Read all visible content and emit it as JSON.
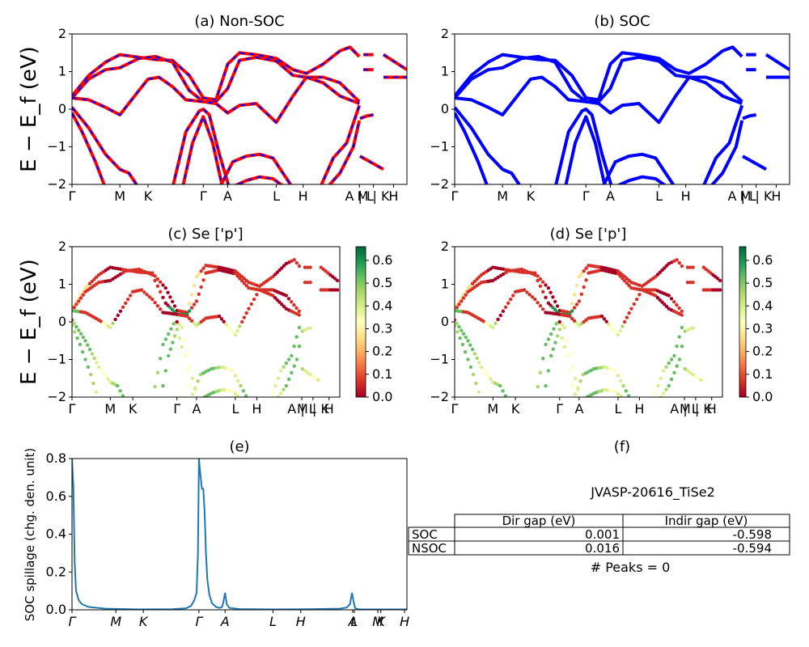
{
  "colors": {
    "nonsoc_line": "#ff0000",
    "nonsoc_dash": "#0000ff",
    "soc_line": "#0000ff",
    "spillage_line": "#1f77b4",
    "colormap": "RdYlGn"
  },
  "chart_data": [
    {
      "id": "a",
      "type": "line",
      "title": "(a) Non-SOC",
      "ylabel": "E − E_f (eV)",
      "ylim": [
        -2,
        2
      ],
      "yticks": [
        "−2",
        "−1",
        "0",
        "1",
        "2"
      ],
      "xticks": [
        "Γ",
        "M",
        "K",
        "Γ",
        "A",
        "L",
        "H",
        "A | L",
        "M | K",
        "H"
      ],
      "xtick_positions": [
        0,
        0.143,
        0.227,
        0.392,
        0.465,
        0.61,
        0.69,
        0.858,
        0.9,
        0.96
      ],
      "note": "band structure, red solid with blue dashed overlay"
    },
    {
      "id": "b",
      "type": "line",
      "title": "(b) SOC",
      "ylim": [
        -2,
        2
      ],
      "yticks": [
        "−2",
        "−1",
        "0",
        "1",
        "2"
      ],
      "xticks": [
        "Γ",
        "M",
        "K",
        "Γ",
        "A",
        "L",
        "H",
        "A | L",
        "M | K",
        "H"
      ],
      "xtick_positions": [
        0,
        0.143,
        0.227,
        0.392,
        0.465,
        0.61,
        0.69,
        0.858,
        0.9,
        0.96
      ]
    },
    {
      "id": "c",
      "type": "scatter",
      "title": "(c)  Se ['p']",
      "ylabel": "E − E_f (eV)",
      "ylim": [
        -2,
        2
      ],
      "yticks": [
        "−2",
        "−1",
        "0",
        "1",
        "2"
      ],
      "xticks": [
        "Γ",
        "M",
        "K",
        "Γ",
        "A",
        "L",
        "H",
        "A | L",
        "M | K",
        "H"
      ],
      "xtick_positions": [
        0,
        0.143,
        0.227,
        0.392,
        0.465,
        0.61,
        0.69,
        0.858,
        0.9,
        0.96
      ],
      "colorbar": {
        "ticks": [
          "0.0",
          "0.1",
          "0.2",
          "0.3",
          "0.4",
          "0.5",
          "0.6"
        ],
        "range": [
          0,
          0.66
        ]
      }
    },
    {
      "id": "d",
      "type": "scatter",
      "title": "(d) Se ['p']",
      "ylim": [
        -2,
        2
      ],
      "yticks": [
        "−2",
        "−1",
        "0",
        "1",
        "2"
      ],
      "xticks": [
        "Γ",
        "M",
        "K",
        "Γ",
        "A",
        "L",
        "H",
        "A | L",
        "M | K",
        "H"
      ],
      "xtick_positions": [
        0,
        0.143,
        0.227,
        0.392,
        0.465,
        0.61,
        0.69,
        0.858,
        0.9,
        0.96
      ],
      "colorbar": {
        "ticks": [
          "0.0",
          "0.1",
          "0.2",
          "0.3",
          "0.4",
          "0.5",
          "0.6"
        ],
        "range": [
          0,
          0.66
        ]
      }
    },
    {
      "id": "e",
      "type": "line",
      "title": "(e)",
      "ylabel": "SOC spillage (chg. den. unit)",
      "ylim": [
        0,
        0.8
      ],
      "yticks": [
        "0.0",
        "0.2",
        "0.4",
        "0.6",
        "0.8"
      ],
      "xticks": [
        "Γ",
        "M",
        "K",
        "Γ",
        "A",
        "L",
        "H",
        "A",
        "L",
        "M",
        "K",
        "H"
      ],
      "xtick_positions": [
        0,
        0.131,
        0.213,
        0.379,
        0.457,
        0.6,
        0.683,
        0.838,
        0.843,
        0.913,
        0.922,
        0.993
      ],
      "x": [
        0,
        0.004,
        0.008,
        0.012,
        0.02,
        0.03,
        0.05,
        0.1,
        0.2,
        0.3,
        0.34,
        0.355,
        0.365,
        0.372,
        0.376,
        0.379,
        0.383,
        0.388,
        0.392,
        0.396,
        0.4,
        0.404,
        0.41,
        0.418,
        0.43,
        0.44,
        0.448,
        0.452,
        0.457,
        0.462,
        0.47,
        0.5,
        0.6,
        0.7,
        0.8,
        0.82,
        0.83,
        0.836,
        0.84,
        0.845,
        0.852,
        0.86,
        0.9,
        1.0
      ],
      "values": [
        0.8,
        0.65,
        0.25,
        0.1,
        0.05,
        0.03,
        0.015,
        0.006,
        0.002,
        0.003,
        0.008,
        0.02,
        0.05,
        0.09,
        0.3,
        0.8,
        0.72,
        0.64,
        0.64,
        0.52,
        0.3,
        0.16,
        0.08,
        0.035,
        0.015,
        0.01,
        0.015,
        0.04,
        0.09,
        0.03,
        0.01,
        0.004,
        0.002,
        0.003,
        0.006,
        0.012,
        0.03,
        0.09,
        0.05,
        0.01,
        0.004,
        0.002,
        0.002,
        0.002
      ]
    }
  ],
  "panel_f": {
    "title": "(f)",
    "material": "JVASP-20616_TiSe2",
    "table": {
      "headers": [
        "",
        "Dir gap (eV)",
        "Indir gap (eV)"
      ],
      "rows": [
        [
          "SOC",
          "0.001",
          "-0.598"
        ],
        [
          "NSOC",
          "0.016",
          "-0.594"
        ]
      ]
    },
    "peaks": "# Peaks = 0"
  }
}
